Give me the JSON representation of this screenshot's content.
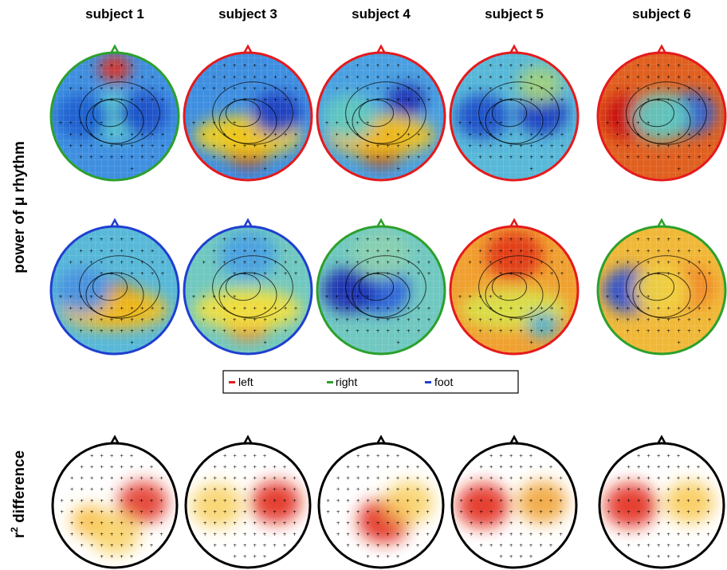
{
  "column_titles": [
    "subject 1",
    "subject 3",
    "subject 4",
    "subject 5",
    "subject 6"
  ],
  "row_labels": {
    "power": "power of μ rhythm",
    "r2_prefix": "r",
    "r2_sup": "2",
    "r2_suffix": " difference"
  },
  "legend": {
    "items": [
      {
        "label": "left",
        "color": "#e41a1c"
      },
      {
        "label": "right",
        "color": "#2ca02c"
      },
      {
        "label": "foot",
        "color": "#1f3fd0"
      }
    ]
  },
  "colors": {
    "left": "#e41a1c",
    "right": "#2ca02c",
    "foot": "#1f3fd0",
    "r2_outline": "#000000"
  },
  "maps": {
    "row1": [
      {
        "subject": "subject 1",
        "class": "right",
        "bg": "#3f8fe0",
        "blobs": [
          {
            "pos": "center",
            "c": "#5fd0d0"
          },
          {
            "pos": "top-center",
            "c": "#e03020"
          },
          {
            "pos": "left",
            "c": "#1a5fd0"
          },
          {
            "pos": "right",
            "c": "#1a4fc8"
          }
        ]
      },
      {
        "subject": "subject 3",
        "class": "left",
        "bg": "#3f8fe0",
        "blobs": [
          {
            "pos": "bottom-center",
            "c": "#c01010"
          },
          {
            "pos": "lower-band",
            "c": "#f0d020"
          },
          {
            "pos": "right",
            "c": "#1a3fc0"
          }
        ]
      },
      {
        "subject": "subject 4",
        "class": "left",
        "bg": "#4aa0e0",
        "blobs": [
          {
            "pos": "bottom-center",
            "c": "#b00808"
          },
          {
            "pos": "lower-band",
            "c": "#f0c020"
          },
          {
            "pos": "right-upper",
            "c": "#1a2fb0"
          },
          {
            "pos": "left",
            "c": "#60c8c0"
          }
        ]
      },
      {
        "subject": "subject 5",
        "class": "left",
        "bg": "#58b8d8",
        "blobs": [
          {
            "pos": "left",
            "c": "#1a4fc8"
          },
          {
            "pos": "right",
            "c": "#1a3fc0"
          },
          {
            "pos": "top-right",
            "c": "#a0d080"
          }
        ]
      },
      {
        "subject": "subject 6",
        "class": "left",
        "bg": "#e06020",
        "blobs": [
          {
            "pos": "left",
            "c": "#c81010"
          },
          {
            "pos": "right",
            "c": "#2a5fd0"
          },
          {
            "pos": "center",
            "c": "#60c8c0"
          }
        ]
      }
    ],
    "row2": [
      {
        "subject": "subject 1",
        "class": "foot",
        "bg": "#58b8d8",
        "blobs": [
          {
            "pos": "center-lower",
            "c": "#c01010"
          },
          {
            "pos": "lower-band",
            "c": "#f0c020"
          },
          {
            "pos": "left",
            "c": "#4a90e0"
          }
        ]
      },
      {
        "subject": "subject 3",
        "class": "foot",
        "bg": "#70c8c0",
        "blobs": [
          {
            "pos": "bottom-center",
            "c": "#f08020"
          },
          {
            "pos": "lower-band",
            "c": "#f0e040"
          },
          {
            "pos": "top",
            "c": "#4aa0e0"
          }
        ]
      },
      {
        "subject": "subject 4",
        "class": "right",
        "bg": "#70c8c0",
        "blobs": [
          {
            "pos": "center",
            "c": "#2a60d8"
          },
          {
            "pos": "left",
            "c": "#1a30b0"
          },
          {
            "pos": "top",
            "c": "#8ad0b0"
          }
        ]
      },
      {
        "subject": "subject 5",
        "class": "left",
        "bg": "#f0a030",
        "blobs": [
          {
            "pos": "top",
            "c": "#e03818"
          },
          {
            "pos": "lower-band",
            "c": "#d8e048"
          },
          {
            "pos": "bottom-right",
            "c": "#50b0d0"
          }
        ]
      },
      {
        "subject": "subject 6",
        "class": "right",
        "bg": "#f0b838",
        "blobs": [
          {
            "pos": "left",
            "c": "#2a50d0"
          },
          {
            "pos": "right",
            "c": "#f08828"
          },
          {
            "pos": "center",
            "c": "#f0d040"
          }
        ]
      }
    ],
    "row3": [
      {
        "subject": "subject 1",
        "blobs": [
          {
            "pos": "right",
            "c": "#e03020"
          },
          {
            "pos": "left-lower",
            "c": "#f8b838"
          },
          {
            "pos": "bottom-center",
            "c": "#f8d060"
          }
        ]
      },
      {
        "subject": "subject 3",
        "blobs": [
          {
            "pos": "right",
            "c": "#e02010"
          },
          {
            "pos": "left",
            "c": "#f8d060"
          }
        ]
      },
      {
        "subject": "subject 4",
        "blobs": [
          {
            "pos": "center-lower",
            "c": "#e02010"
          },
          {
            "pos": "right",
            "c": "#f8d060"
          }
        ]
      },
      {
        "subject": "subject 5",
        "blobs": [
          {
            "pos": "left",
            "c": "#e02010"
          },
          {
            "pos": "right",
            "c": "#f0a030"
          }
        ]
      },
      {
        "subject": "subject 6",
        "blobs": [
          {
            "pos": "left",
            "c": "#e02010"
          },
          {
            "pos": "right",
            "c": "#f8c850"
          }
        ]
      }
    ]
  }
}
